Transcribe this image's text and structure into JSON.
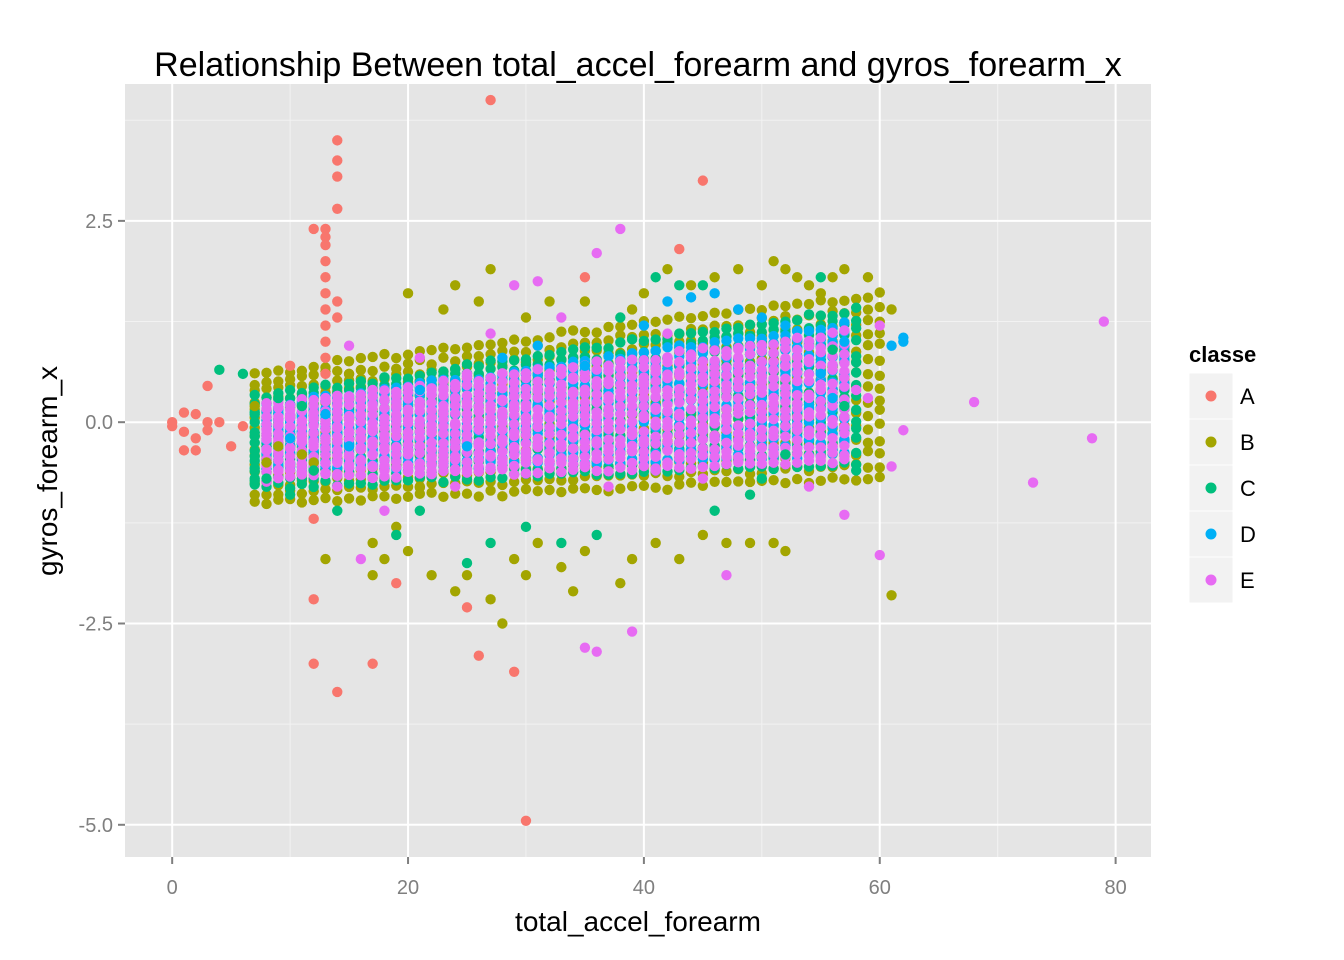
{
  "chart_data": {
    "type": "scatter",
    "title": "Relationship Between total_accel_forearm and gyros_forearm_x",
    "xlabel": "total_accel_forearm",
    "ylabel": "gyros_forearm_x",
    "xlim": [
      -4,
      83
    ],
    "ylim": [
      -5.4,
      4.2
    ],
    "x_ticks": [
      0,
      20,
      40,
      60,
      80
    ],
    "y_ticks": [
      -5.0,
      -2.5,
      0.0,
      2.5
    ],
    "x_tick_labels": [
      "0",
      "20",
      "40",
      "60",
      "80"
    ],
    "y_tick_labels": [
      "-5.0",
      "-2.5",
      "0.0",
      "2.5"
    ],
    "grid": true,
    "legend": {
      "title": "classe",
      "position": "right",
      "entries": [
        "A",
        "B",
        "C",
        "D",
        "E"
      ]
    },
    "colors": {
      "A": "#F8766D",
      "B": "#A3A500",
      "C": "#00BF7D",
      "D": "#00B0F6",
      "E": "#E76BF3",
      "panel": "#E5E5E5",
      "grid_major": "#FFFFFF",
      "grid_minor": "#F2F2F2"
    },
    "series": [
      {
        "name": "A",
        "points": [
          [
            0,
            -0.05
          ],
          [
            0,
            0.0
          ],
          [
            1,
            0.12
          ],
          [
            1,
            -0.12
          ],
          [
            1,
            -0.35
          ],
          [
            2,
            0.1
          ],
          [
            2,
            -0.2
          ],
          [
            2,
            -0.35
          ],
          [
            3,
            0.45
          ],
          [
            3,
            0.0
          ],
          [
            3,
            -0.1
          ],
          [
            4,
            0.0
          ],
          [
            5,
            -0.3
          ],
          [
            6,
            -0.05
          ],
          [
            10,
            0.7
          ],
          [
            12,
            2.4
          ],
          [
            12,
            -1.2
          ],
          [
            12,
            -2.2
          ],
          [
            12,
            -3.0
          ],
          [
            13,
            2.4
          ],
          [
            13,
            2.3
          ],
          [
            13,
            2.2
          ],
          [
            13,
            2.0
          ],
          [
            13,
            1.8
          ],
          [
            13,
            1.6
          ],
          [
            13,
            1.4
          ],
          [
            13,
            1.2
          ],
          [
            13,
            1.0
          ],
          [
            13,
            0.8
          ],
          [
            13,
            0.6
          ],
          [
            14,
            3.5
          ],
          [
            14,
            3.25
          ],
          [
            14,
            3.05
          ],
          [
            14,
            2.65
          ],
          [
            14,
            1.5
          ],
          [
            14,
            1.3
          ],
          [
            14,
            -3.35
          ],
          [
            17,
            -3.0
          ],
          [
            19,
            -2.0
          ],
          [
            25,
            -2.3
          ],
          [
            26,
            -2.9
          ],
          [
            27,
            4.0
          ],
          [
            29,
            -3.1
          ],
          [
            30,
            -4.95
          ],
          [
            35,
            1.8
          ],
          [
            43,
            2.15
          ],
          [
            45,
            3.0
          ]
        ]
      },
      {
        "name": "B",
        "points": [
          [
            7,
            0.2
          ],
          [
            8,
            -0.5
          ],
          [
            9,
            -0.3
          ],
          [
            11,
            -0.4
          ],
          [
            12,
            -0.5
          ],
          [
            13,
            -1.7
          ],
          [
            15,
            0.6
          ],
          [
            17,
            -1.5
          ],
          [
            17,
            -1.9
          ],
          [
            18,
            -1.7
          ],
          [
            19,
            -1.3
          ],
          [
            20,
            1.6
          ],
          [
            20,
            -1.6
          ],
          [
            21,
            -0.8
          ],
          [
            22,
            -1.9
          ],
          [
            23,
            1.4
          ],
          [
            24,
            1.7
          ],
          [
            24,
            -2.1
          ],
          [
            25,
            -1.9
          ],
          [
            26,
            1.5
          ],
          [
            27,
            1.9
          ],
          [
            27,
            -2.2
          ],
          [
            28,
            -2.5
          ],
          [
            29,
            -1.7
          ],
          [
            30,
            1.3
          ],
          [
            30,
            -1.9
          ],
          [
            31,
            -1.5
          ],
          [
            32,
            1.5
          ],
          [
            33,
            -1.8
          ],
          [
            34,
            -2.1
          ],
          [
            35,
            1.5
          ],
          [
            35,
            -1.6
          ],
          [
            38,
            -2.0
          ],
          [
            39,
            1.4
          ],
          [
            39,
            -1.7
          ],
          [
            40,
            1.6
          ],
          [
            41,
            -1.5
          ],
          [
            42,
            1.9
          ],
          [
            43,
            -1.7
          ],
          [
            44,
            1.7
          ],
          [
            45,
            -1.4
          ],
          [
            46,
            1.8
          ],
          [
            47,
            -1.5
          ],
          [
            48,
            1.9
          ],
          [
            49,
            -1.5
          ],
          [
            50,
            1.7
          ],
          [
            51,
            2.0
          ],
          [
            51,
            -1.5
          ],
          [
            52,
            1.9
          ],
          [
            52,
            -1.6
          ],
          [
            53,
            1.8
          ],
          [
            54,
            1.7
          ],
          [
            55,
            1.6
          ],
          [
            56,
            1.8
          ],
          [
            57,
            1.9
          ],
          [
            59,
            1.8
          ],
          [
            61,
            1.4
          ],
          [
            61,
            -2.15
          ]
        ]
      },
      {
        "name": "C",
        "points": [
          [
            4,
            0.65
          ],
          [
            6,
            0.6
          ],
          [
            7,
            -0.7
          ],
          [
            8,
            -0.7
          ],
          [
            9,
            0.3
          ],
          [
            10,
            -0.9
          ],
          [
            11,
            0.2
          ],
          [
            12,
            -0.6
          ],
          [
            14,
            -1.1
          ],
          [
            19,
            -1.4
          ],
          [
            21,
            -1.1
          ],
          [
            25,
            -1.75
          ],
          [
            27,
            -1.5
          ],
          [
            30,
            -1.3
          ],
          [
            33,
            -1.5
          ],
          [
            36,
            -1.4
          ],
          [
            38,
            1.3
          ],
          [
            41,
            1.8
          ],
          [
            43,
            1.7
          ],
          [
            45,
            1.7
          ],
          [
            46,
            -1.1
          ],
          [
            49,
            -0.9
          ],
          [
            50,
            -0.7
          ],
          [
            52,
            -0.4
          ],
          [
            55,
            1.8
          ],
          [
            56,
            0.9
          ],
          [
            57,
            0.2
          ],
          [
            58,
            -0.6
          ]
        ]
      },
      {
        "name": "D",
        "points": [
          [
            10,
            -0.2
          ],
          [
            13,
            0.1
          ],
          [
            15,
            -0.3
          ],
          [
            21,
            0.4
          ],
          [
            25,
            -0.3
          ],
          [
            28,
            0.8
          ],
          [
            31,
            0.95
          ],
          [
            35,
            0.7
          ],
          [
            40,
            1.2
          ],
          [
            42,
            1.5
          ],
          [
            44,
            1.55
          ],
          [
            46,
            1.6
          ],
          [
            48,
            1.4
          ],
          [
            50,
            1.3
          ],
          [
            52,
            1.2
          ],
          [
            55,
            0.6
          ],
          [
            56,
            0.3
          ],
          [
            57,
            1.0
          ],
          [
            61,
            0.95
          ],
          [
            62,
            1.05
          ],
          [
            62,
            1.0
          ]
        ]
      },
      {
        "name": "E",
        "points": [
          [
            8,
            -0.1
          ],
          [
            10,
            0.05
          ],
          [
            11,
            -0.2
          ],
          [
            13,
            0.3
          ],
          [
            14,
            -0.8
          ],
          [
            15,
            0.95
          ],
          [
            16,
            -1.7
          ],
          [
            17,
            0.4
          ],
          [
            18,
            -1.1
          ],
          [
            19,
            0.2
          ],
          [
            20,
            -0.4
          ],
          [
            21,
            0.8
          ],
          [
            22,
            -0.6
          ],
          [
            23,
            0.4
          ],
          [
            24,
            -0.8
          ],
          [
            25,
            0.6
          ],
          [
            26,
            -0.3
          ],
          [
            27,
            1.1
          ],
          [
            28,
            -0.5
          ],
          [
            29,
            1.7
          ],
          [
            30,
            -0.4
          ],
          [
            31,
            1.75
          ],
          [
            32,
            -0.5
          ],
          [
            33,
            1.3
          ],
          [
            34,
            0.2
          ],
          [
            35,
            -2.8
          ],
          [
            36,
            2.1
          ],
          [
            36,
            -2.85
          ],
          [
            37,
            -0.8
          ],
          [
            38,
            2.4
          ],
          [
            39,
            -2.6
          ],
          [
            40,
            0.5
          ],
          [
            41,
            -0.6
          ],
          [
            42,
            1.1
          ],
          [
            43,
            -0.4
          ],
          [
            44,
            0.8
          ],
          [
            45,
            -0.7
          ],
          [
            46,
            0.6
          ],
          [
            47,
            -1.9
          ],
          [
            48,
            0.9
          ],
          [
            49,
            -0.3
          ],
          [
            50,
            0.5
          ],
          [
            51,
            -0.4
          ],
          [
            52,
            0.7
          ],
          [
            53,
            -0.1
          ],
          [
            54,
            -0.8
          ],
          [
            55,
            0.4
          ],
          [
            56,
            -0.3
          ],
          [
            57,
            -1.15
          ],
          [
            58,
            0.4
          ],
          [
            59,
            0.3
          ],
          [
            60,
            1.2
          ],
          [
            60,
            -1.65
          ],
          [
            61,
            -0.55
          ],
          [
            62,
            -0.1
          ],
          [
            68,
            0.25
          ],
          [
            73,
            -0.75
          ],
          [
            78,
            -0.2
          ],
          [
            79,
            1.25
          ]
        ]
      }
    ],
    "dense_bands": [
      {
        "series": "B",
        "x_from": 7,
        "x_to": 60,
        "y_lo_start": -1.0,
        "y_lo_end": -0.7,
        "y_hi_start": 0.6,
        "y_hi_end": 1.6
      },
      {
        "series": "C",
        "x_from": 7,
        "x_to": 58,
        "y_lo_start": -0.8,
        "y_lo_end": -0.5,
        "y_hi_start": 0.3,
        "y_hi_end": 1.4
      },
      {
        "series": "D",
        "x_from": 8,
        "x_to": 57,
        "y_lo_start": -0.6,
        "y_lo_end": -0.4,
        "y_hi_start": 0.2,
        "y_hi_end": 1.2
      },
      {
        "series": "E",
        "x_from": 8,
        "x_to": 57,
        "y_lo_start": -0.7,
        "y_lo_end": -0.5,
        "y_hi_start": 0.2,
        "y_hi_end": 1.1
      }
    ]
  }
}
